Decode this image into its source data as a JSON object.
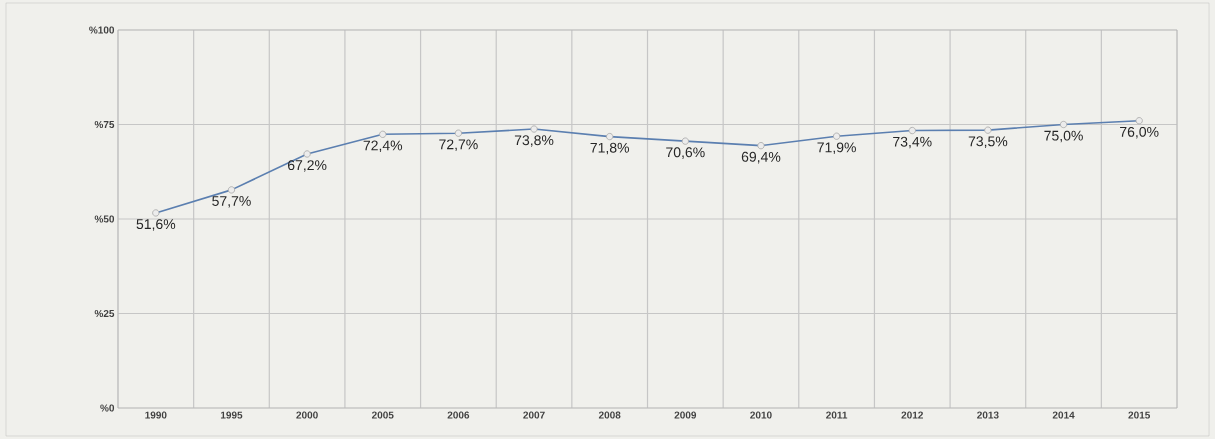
{
  "chart_data": {
    "type": "line",
    "categories": [
      "1990",
      "1995",
      "2000",
      "2005",
      "2006",
      "2007",
      "2008",
      "2009",
      "2010",
      "2011",
      "2012",
      "2013",
      "2014",
      "2015"
    ],
    "series": [
      {
        "color": "#5b7fb0",
        "values": [
          51.6,
          57.7,
          67.2,
          72.4,
          72.7,
          73.8,
          71.8,
          70.6,
          69.4,
          71.9,
          73.4,
          73.5,
          75.0,
          76.0
        ],
        "value_labels": [
          "51,6%",
          "57,7%",
          "67,2%",
          "72,4%",
          "72,7%",
          "73,8%",
          "71,8%",
          "70,6%",
          "69,4%",
          "71,9%",
          "73,4%",
          "73,5%",
          "75,0%",
          "76,0%"
        ]
      }
    ],
    "ylim": [
      0,
      100
    ],
    "yticks": [
      {
        "value": 0,
        "label": "%0"
      },
      {
        "value": 25,
        "label": "%25"
      },
      {
        "value": 50,
        "label": "%50"
      },
      {
        "value": 75,
        "label": "%75"
      },
      {
        "value": 100,
        "label": "%100"
      }
    ],
    "grid": true,
    "marker": "circle",
    "line_style": "solid"
  }
}
